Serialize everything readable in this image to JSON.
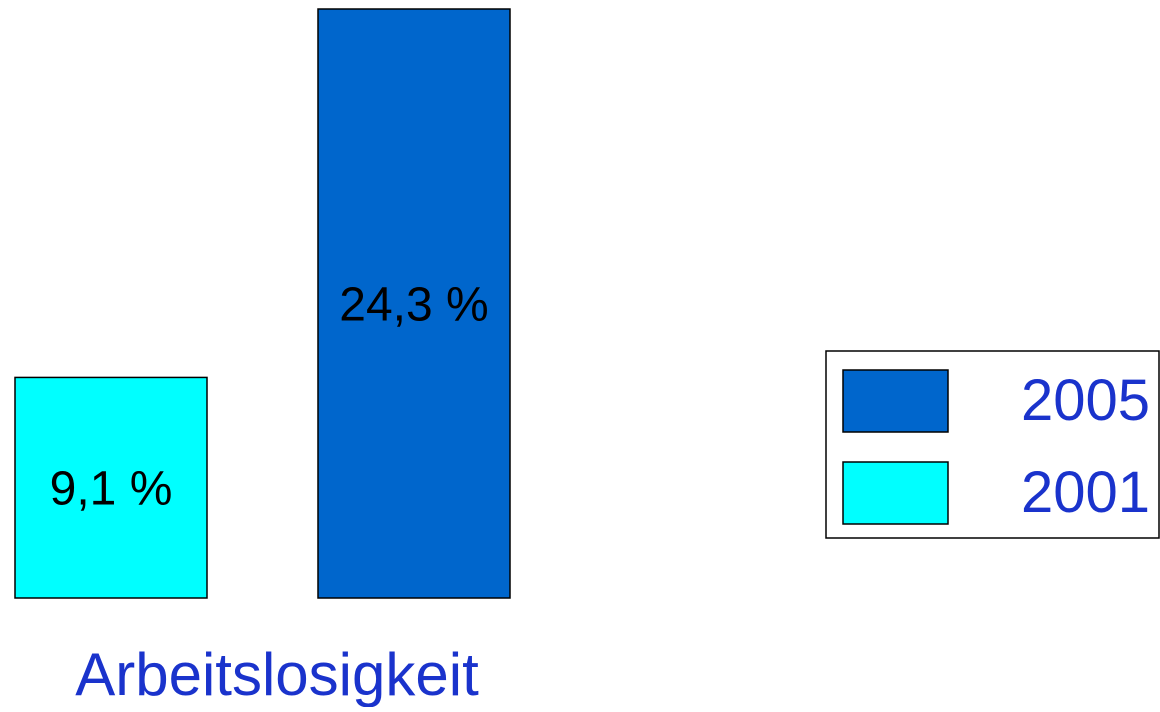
{
  "chart_data": {
    "type": "bar",
    "categories": [
      "Arbeitslosigkeit"
    ],
    "series": [
      {
        "name": "2001",
        "values": [
          9.1
        ],
        "value_label": "9,1 %",
        "color": "#00ffff"
      },
      {
        "name": "2005",
        "values": [
          24.3
        ],
        "value_label": "24,3 %",
        "color": "#0066cc"
      }
    ],
    "ylim": [
      0,
      24.3
    ],
    "grid": false,
    "legend": {
      "placement": "right",
      "order": [
        "2005",
        "2001"
      ],
      "text_color": "#1a33cc"
    },
    "category_label_color": "#1a33cc",
    "xlabel": "",
    "ylabel": "",
    "title": ""
  }
}
